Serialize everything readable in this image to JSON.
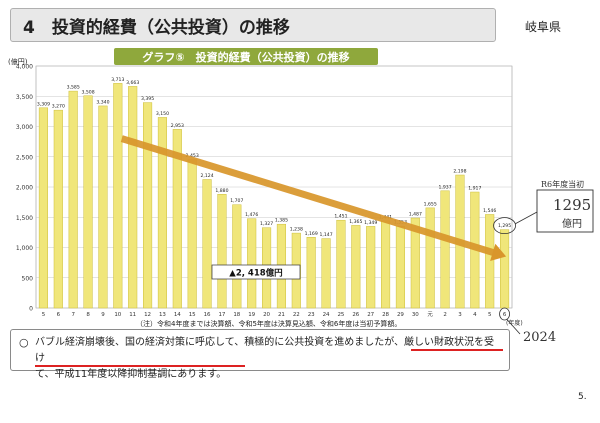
{
  "header": {
    "title": "4　投資的経費（公共投資）の推移",
    "prefecture": "岐阜県"
  },
  "chart_data": {
    "type": "bar",
    "title": "グラフ⑤　投資的経費（公共投資）の推移",
    "ylabel": "(億円)",
    "xlabel": "(年度)",
    "ylim": [
      0,
      4000
    ],
    "yticks": [
      0,
      500,
      1000,
      1500,
      2000,
      2500,
      3000,
      3500,
      4000
    ],
    "ytick_labels": [
      "0",
      "500",
      "1,000",
      "1,500",
      "2,000",
      "2,500",
      "3,000",
      "3,500",
      "4,000"
    ],
    "categories": [
      "5",
      "6",
      "7",
      "8",
      "9",
      "10",
      "11",
      "12",
      "13",
      "14",
      "15",
      "16",
      "17",
      "18",
      "19",
      "20",
      "21",
      "22",
      "23",
      "24",
      "25",
      "26",
      "27",
      "28",
      "29",
      "30",
      "元",
      "2",
      "3",
      "4",
      "5",
      "6"
    ],
    "values": [
      3309,
      3270,
      3585,
      3508,
      3340,
      3713,
      3663,
      3395,
      3150,
      2953,
      2453,
      2124,
      1880,
      1707,
      1476,
      1327,
      1385,
      1238,
      1169,
      1147,
      1451,
      1365,
      1349,
      1441,
      1353,
      1487,
      1655,
      1937,
      2198,
      1917,
      1546,
      1295
    ],
    "value_labels": [
      "3,309",
      "3,270",
      "3,585",
      "3,508",
      "3,340",
      "3,713",
      "3,663",
      "3,395",
      "3,150",
      "2,953",
      "2,453",
      "2,124",
      "1,880",
      "1,707",
      "1,476",
      "1,327",
      "1,385",
      "1,238",
      "1,169",
      "1,147",
      "1,451",
      "1,365",
      "1,349",
      "1,441",
      "1,353",
      "1,487",
      "1,655",
      "1,937",
      "2,198",
      "1,917",
      "1,546",
      "1,295"
    ],
    "grid": true,
    "bar_color": "#f0e67a",
    "trend_arrow": {
      "from_category": "10",
      "to_category": "6",
      "color": "#d9962b"
    },
    "annotation": "▲2, 418億円",
    "note": "（注）令和4年度までは決算額、令和5年度は決算見込額、令和6年度は当初予算額。"
  },
  "handwritten": {
    "r6_title": "R6年度当初",
    "r6_value": "1295",
    "r6_unit": "億円",
    "year": "2024"
  },
  "footer": {
    "bullet": "○",
    "lines": [
      "バブル経済崩壊後、国の経済対策に呼応して、積極的に公共投資を進めましたが、厳しい財政状況を受け",
      "て、平成11年度以降抑制基調にあります。"
    ]
  },
  "page": {
    "number": "5."
  }
}
